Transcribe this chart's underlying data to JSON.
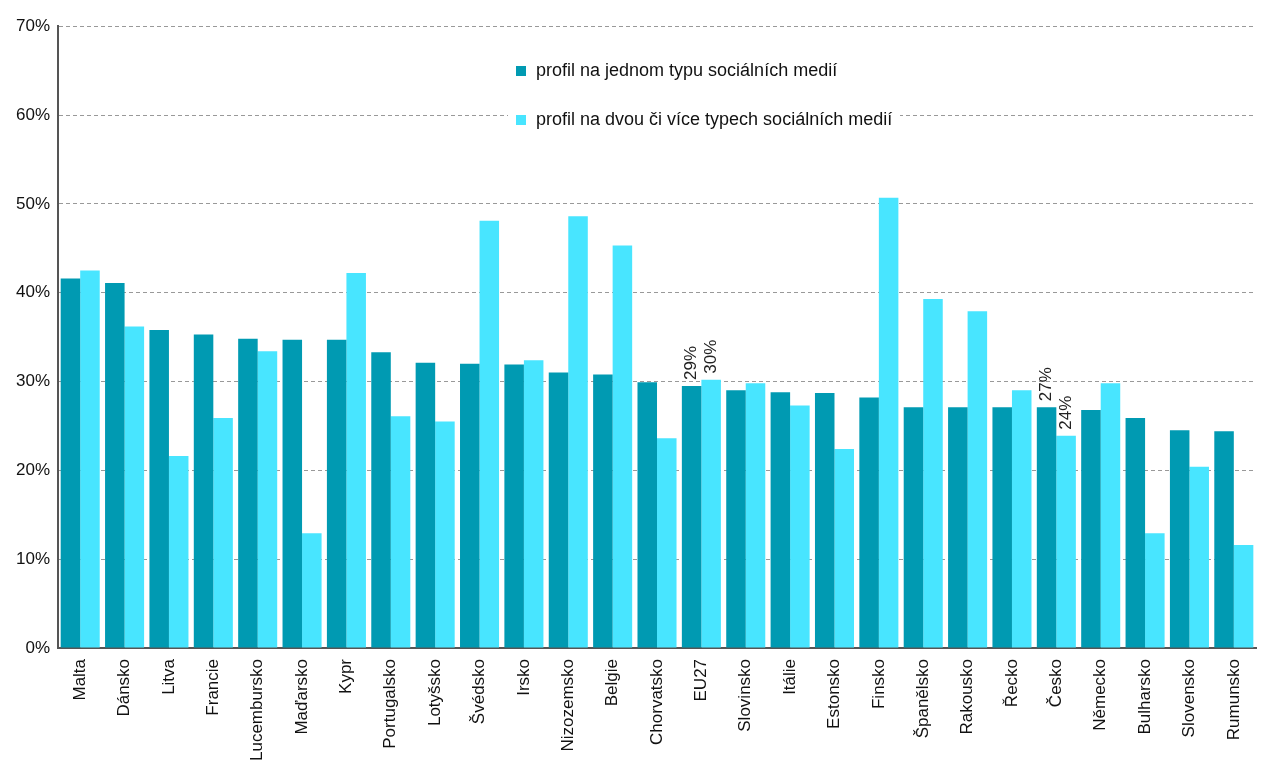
{
  "chart_data": {
    "type": "bar",
    "categories": [
      "Malta",
      "Dánsko",
      "Litva",
      "Francie",
      "Lucembursko",
      "Maďarsko",
      "Kypr",
      "Portugalsko",
      "Lotyšsko",
      "Švédsko",
      "Irsko",
      "Nizozemsko",
      "Belgie",
      "Chorvatsko",
      "EU27",
      "Slovinsko",
      "Itálie",
      "Estonsko",
      "Finsko",
      "Španělsko",
      "Rakousko",
      "Řecko",
      "Česko",
      "Německo",
      "Bulharsko",
      "Slovensko",
      "Rumunsko"
    ],
    "series": [
      {
        "name": "profil na jednom typu sociálních medií",
        "color": "#009ab2",
        "values": [
          41.6,
          41.1,
          35.8,
          35.3,
          34.8,
          34.7,
          34.7,
          33.3,
          32.1,
          32.0,
          31.9,
          31.0,
          30.8,
          29.9,
          29.5,
          29.0,
          28.8,
          28.7,
          28.2,
          27.1,
          27.1,
          27.1,
          27.1,
          26.8,
          25.9,
          24.5,
          24.4
        ],
        "value_labels": [
          null,
          null,
          null,
          null,
          null,
          null,
          null,
          null,
          null,
          null,
          null,
          null,
          null,
          null,
          "29%",
          null,
          null,
          null,
          null,
          null,
          null,
          null,
          "27%",
          null,
          null,
          null,
          null
        ]
      },
      {
        "name": "profil na dvou či více typech sociálních medií",
        "color": "#48e5ff",
        "values": [
          42.5,
          36.2,
          21.6,
          25.9,
          33.4,
          12.9,
          42.2,
          26.1,
          25.5,
          48.1,
          32.4,
          48.6,
          45.3,
          23.6,
          30.2,
          29.8,
          27.3,
          22.4,
          50.7,
          39.3,
          37.9,
          29.0,
          23.9,
          29.8,
          12.9,
          20.4,
          11.6
        ],
        "value_labels": [
          null,
          null,
          null,
          null,
          null,
          null,
          null,
          null,
          null,
          null,
          null,
          null,
          null,
          null,
          "30%",
          null,
          null,
          null,
          null,
          null,
          null,
          null,
          "24%",
          null,
          null,
          null,
          null
        ]
      }
    ],
    "ylim": [
      0,
      70
    ],
    "yticks": [
      {
        "value": 0,
        "label": "0%"
      },
      {
        "value": 10,
        "label": "10%"
      },
      {
        "value": 20,
        "label": "20%"
      },
      {
        "value": 30,
        "label": "30%"
      },
      {
        "value": 40,
        "label": "40%"
      },
      {
        "value": 50,
        "label": "50%"
      },
      {
        "value": 60,
        "label": "60%"
      },
      {
        "value": 70,
        "label": "70%"
      }
    ],
    "grid": "y",
    "legend": "top"
  }
}
